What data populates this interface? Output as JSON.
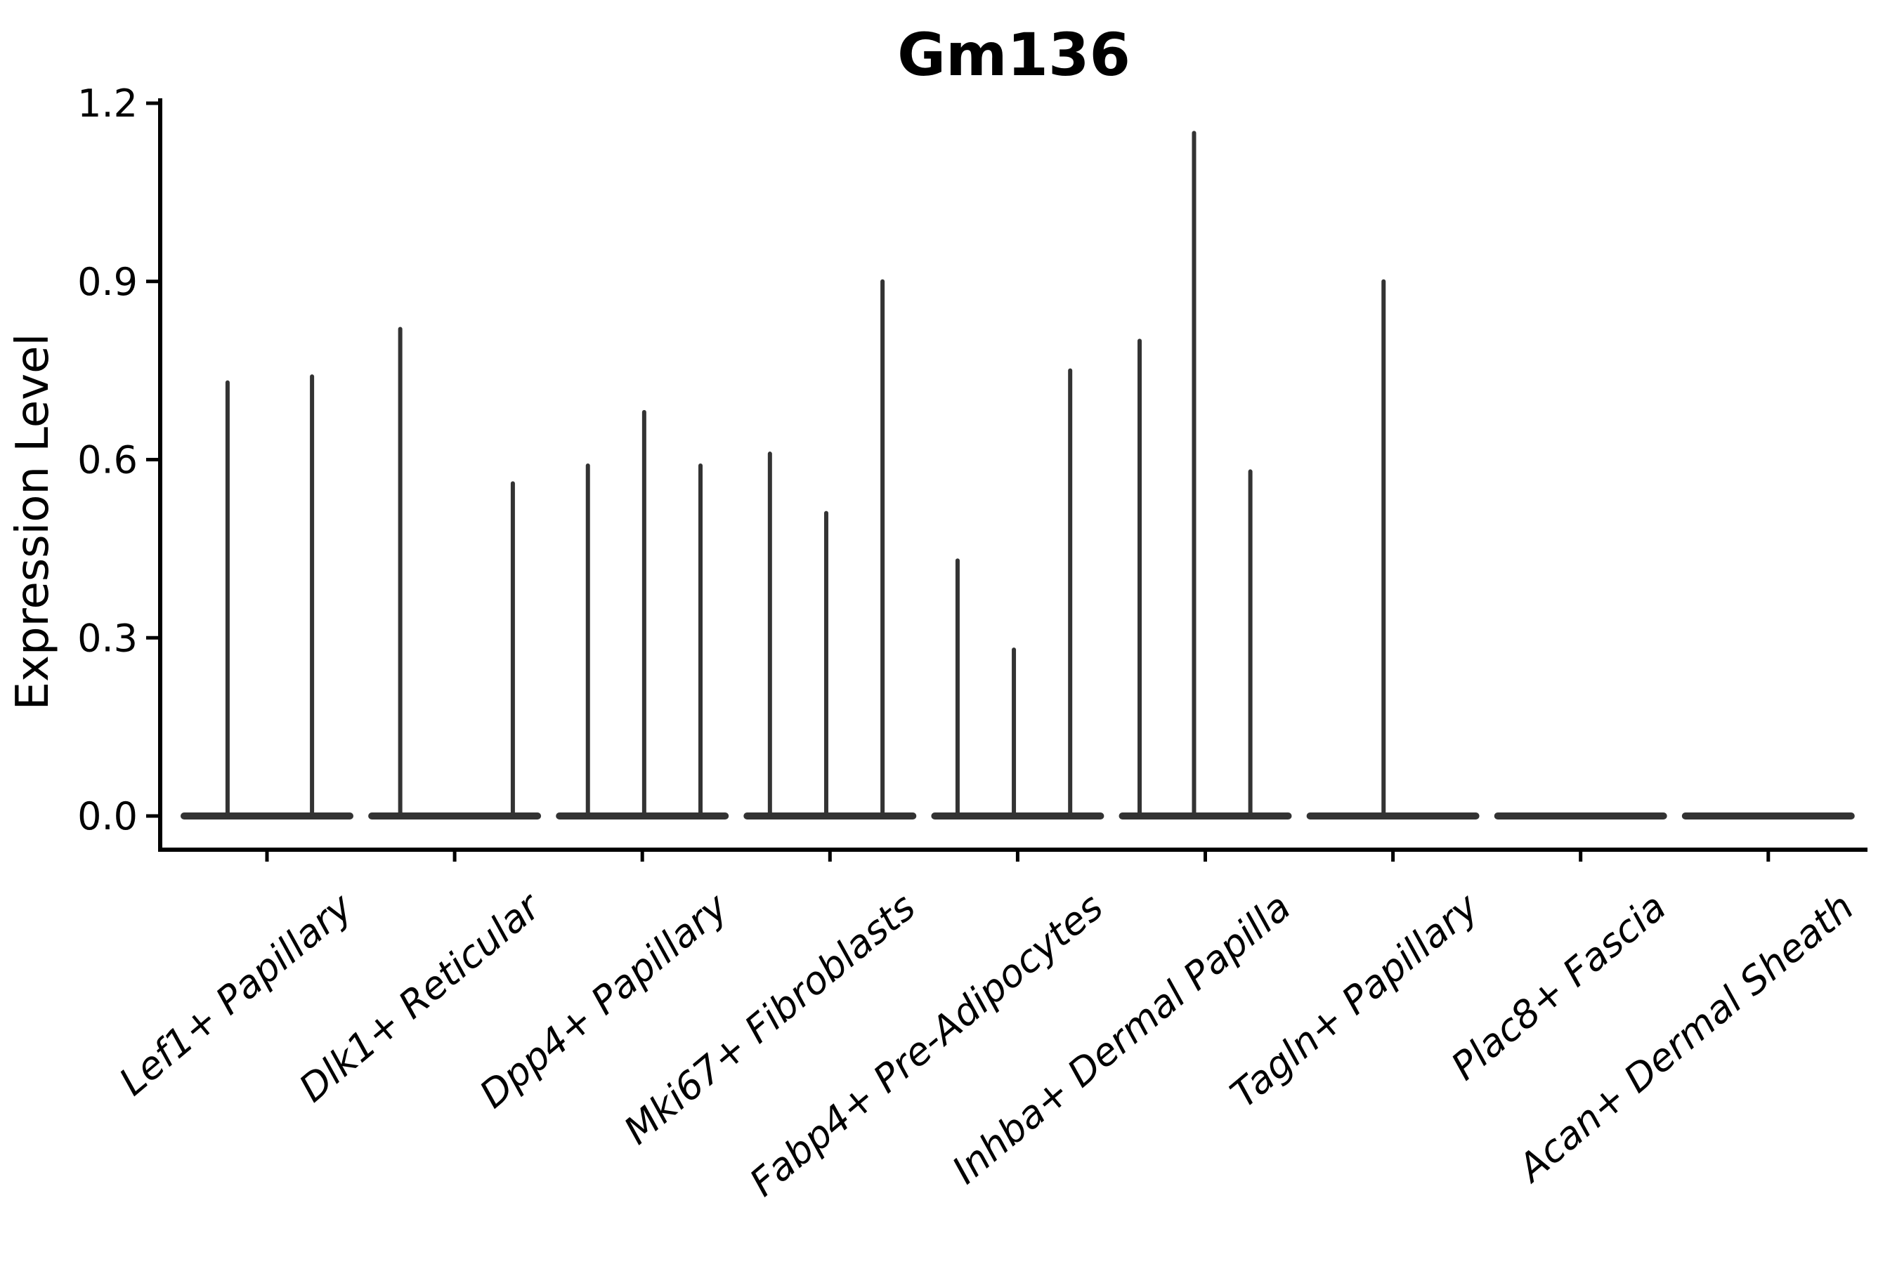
{
  "figure": {
    "title": "Gm136",
    "ylabel": "Expression Level"
  },
  "chart_data": {
    "type": "violin",
    "title": "Gm136",
    "xlabel": "",
    "ylabel": "Expression Level",
    "ylim": [
      0,
      1.2
    ],
    "ytick_values": [
      0.0,
      0.3,
      0.6,
      0.9,
      1.2
    ],
    "ytick_labels": [
      "0.0",
      "0.3",
      "0.6",
      "0.9",
      "1.2"
    ],
    "grid": false,
    "legend": "none",
    "x_label_rotation_deg": 40,
    "categories": [
      "Lef1+ Papillary",
      "Dlk1+ Reticular",
      "Dpp4+ Papillary",
      "Mki67+ Fibroblasts",
      "Fabp4+ Pre-Adipocytes",
      "Inhba+ Dermal Papilla",
      "Tagln+ Papillary",
      "Plac8+ Fascia",
      "Acan+ Dermal Sheath"
    ],
    "baseline_value": 0.0,
    "series": [
      {
        "category": "Lef1+ Papillary",
        "spikes": [
          {
            "dx_frac": -0.21,
            "value": 0.73
          },
          {
            "dx_frac": 0.24,
            "value": 0.74
          }
        ]
      },
      {
        "category": "Dlk1+ Reticular",
        "spikes": [
          {
            "dx_frac": -0.29,
            "value": 0.82
          },
          {
            "dx_frac": 0.31,
            "value": 0.56
          }
        ]
      },
      {
        "category": "Dpp4+ Papillary",
        "spikes": [
          {
            "dx_frac": -0.29,
            "value": 0.59
          },
          {
            "dx_frac": 0.01,
            "value": 0.68
          },
          {
            "dx_frac": 0.31,
            "value": 0.59
          }
        ]
      },
      {
        "category": "Mki67+ Fibroblasts",
        "spikes": [
          {
            "dx_frac": -0.32,
            "value": 0.61
          },
          {
            "dx_frac": -0.02,
            "value": 0.51
          },
          {
            "dx_frac": 0.28,
            "value": 0.9
          }
        ]
      },
      {
        "category": "Fabp4+ Pre-Adipocytes",
        "spikes": [
          {
            "dx_frac": -0.32,
            "value": 0.43
          },
          {
            "dx_frac": -0.02,
            "value": 0.28
          },
          {
            "dx_frac": 0.28,
            "value": 0.75
          }
        ]
      },
      {
        "category": "Inhba+ Dermal Papilla",
        "spikes": [
          {
            "dx_frac": -0.35,
            "value": 0.8
          },
          {
            "dx_frac": -0.06,
            "value": 1.15
          },
          {
            "dx_frac": 0.24,
            "value": 0.58
          }
        ]
      },
      {
        "category": "Tagln+ Papillary",
        "spikes": [
          {
            "dx_frac": -0.05,
            "value": 0.9
          }
        ]
      },
      {
        "category": "Plac8+ Fascia",
        "spikes": []
      },
      {
        "category": "Acan+ Dermal Sheath",
        "spikes": []
      }
    ],
    "style": {
      "violin_color": "#333333",
      "spine_color": "#000000",
      "text_color": "#000000",
      "background": "#ffffff"
    }
  }
}
